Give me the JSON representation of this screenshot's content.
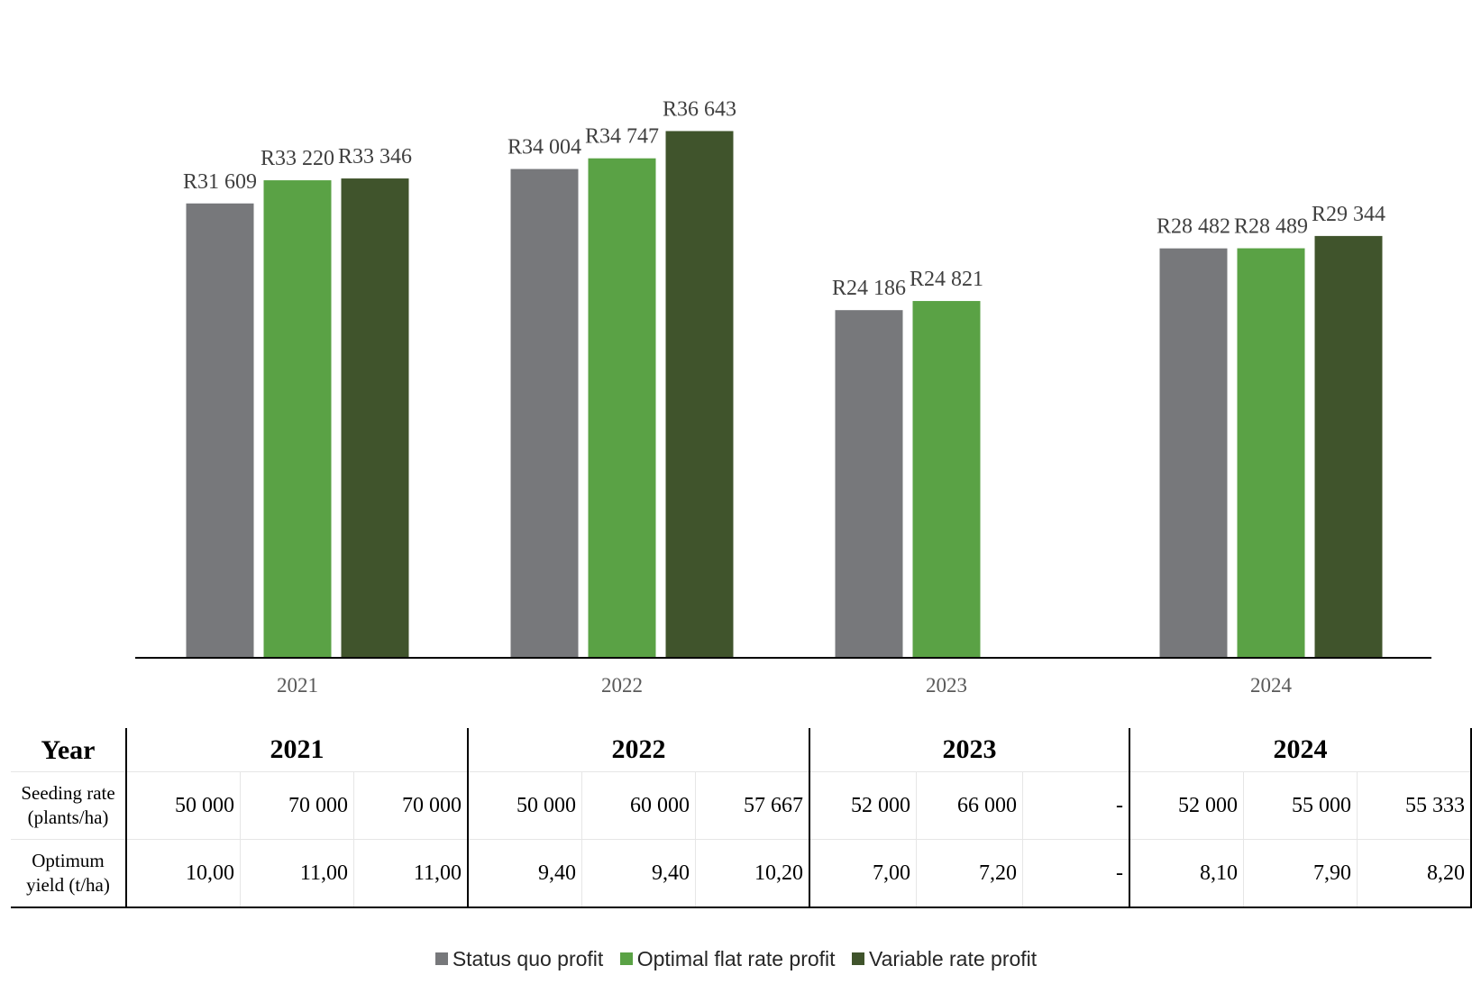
{
  "colors": {
    "status_quo": "#77787b",
    "optimal_flat": "#5aa245",
    "variable": "#40542c",
    "axis": "#000000"
  },
  "chart_data": {
    "type": "bar",
    "categories": [
      "2021",
      "2022",
      "2023",
      "2024"
    ],
    "series": [
      {
        "name": "Status quo profit",
        "values": [
          31609,
          34004,
          24186,
          28482
        ],
        "labels": [
          "R31 609",
          "R34 004",
          "R24 186",
          "R28 482"
        ],
        "color": "#77787b"
      },
      {
        "name": "Optimal flat rate profit",
        "values": [
          33220,
          34747,
          24821,
          28489
        ],
        "labels": [
          "R33 220",
          "R34 747",
          "R24 821",
          "R28 489"
        ],
        "color": "#5aa245"
      },
      {
        "name": "Variable rate profit",
        "values": [
          33346,
          36643,
          null,
          29344
        ],
        "labels": [
          "R33 346",
          "R36 643",
          "",
          "R29 344"
        ],
        "color": "#40542c"
      }
    ],
    "ylim": [
      0,
      42000
    ],
    "grid": false,
    "legend_position": "bottom"
  },
  "table": {
    "year_header": "Year",
    "years": [
      "2021",
      "2022",
      "2023",
      "2024"
    ],
    "rows": [
      {
        "label_line1": "Seeding rate",
        "label_line2": "(plants/ha)",
        "cells": [
          "50 000",
          "70 000",
          "70 000",
          "50 000",
          "60 000",
          "57 667",
          "52 000",
          "66 000",
          "-",
          "52 000",
          "55 000",
          "55 333"
        ]
      },
      {
        "label_line1": "Optimum",
        "label_line2": "yield (t/ha)",
        "cells": [
          "10,00",
          "11,00",
          "11,00",
          "9,40",
          "9,40",
          "10,20",
          "7,00",
          "7,20",
          "-",
          "8,10",
          "7,90",
          "8,20"
        ]
      }
    ]
  },
  "legend": [
    {
      "label": "Status quo profit",
      "color": "#77787b"
    },
    {
      "label": "Optimal flat rate profit",
      "color": "#5aa245"
    },
    {
      "label": "Variable rate profit",
      "color": "#40542c"
    }
  ]
}
